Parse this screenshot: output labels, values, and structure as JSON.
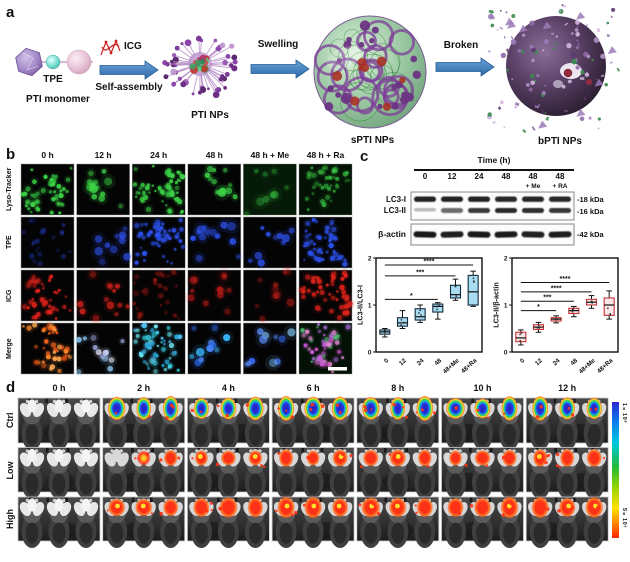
{
  "panel_a": {
    "label": "a",
    "tpe_label": "TPE",
    "monomer_label": "PTI monomer",
    "icg_label": "ICG",
    "self_assembly_label": "Self-assembly",
    "pti_nps_label": "PTI NPs",
    "swelling_label": "Swelling",
    "spti_nps_label": "sPTI NPs",
    "broken_label": "Broken",
    "bpti_nps_label": "bPTI NPs"
  },
  "panel_b": {
    "label": "b",
    "col_headers": [
      "0 h",
      "12 h",
      "24 h",
      "48 h",
      "48 h + Me",
      "48 h + Ra"
    ],
    "row_labels": [
      "Lyso-Tracker",
      "TPE",
      "ICG",
      "Merge"
    ]
  },
  "panel_c": {
    "label": "c",
    "time_header": "Time  (h)",
    "lanes": [
      "0",
      "12",
      "24",
      "48",
      "48",
      "48"
    ],
    "lane_subs": [
      "",
      "",
      "",
      "",
      "+ Me",
      "+ RA"
    ],
    "band_labels_left": [
      "LC3-I",
      "LC3-II",
      "β-actin"
    ],
    "band_labels_right": [
      "-18 kDa",
      "-16 kDa",
      "-42 kDa"
    ]
  },
  "chart_data": [
    {
      "type": "box",
      "ylabel": "LC3-II/LC3-I",
      "ylim": [
        0,
        2
      ],
      "yticks": [
        0,
        1,
        2
      ],
      "categories": [
        "0",
        "12",
        "24",
        "48",
        "48+Me",
        "48+Ra"
      ],
      "boxes": [
        {
          "low": 0.32,
          "q1": 0.38,
          "median": 0.43,
          "q3": 0.47,
          "high": 0.5
        },
        {
          "low": 0.5,
          "q1": 0.55,
          "median": 0.62,
          "q3": 0.73,
          "high": 0.88
        },
        {
          "low": 0.63,
          "q1": 0.68,
          "median": 0.75,
          "q3": 0.92,
          "high": 1.0
        },
        {
          "low": 0.7,
          "q1": 0.85,
          "median": 0.97,
          "q3": 1.02,
          "high": 1.05
        },
        {
          "low": 1.1,
          "q1": 1.15,
          "median": 1.22,
          "q3": 1.42,
          "high": 1.55
        },
        {
          "low": 0.97,
          "q1": 1.0,
          "median": 1.28,
          "q3": 1.63,
          "high": 1.72
        }
      ],
      "significance": [
        {
          "from": 0,
          "to": 3,
          "y": 1.12,
          "label": "*"
        },
        {
          "from": 0,
          "to": 4,
          "y": 1.62,
          "label": "***"
        },
        {
          "from": 0,
          "to": 5,
          "y": 1.85,
          "label": "****"
        }
      ],
      "box_color": "#aadcf2",
      "edge_color": "#122b3e",
      "grid": false,
      "legend": "none"
    },
    {
      "type": "box",
      "ylabel": "LC3-II/β-actin",
      "ylim": [
        0,
        2
      ],
      "yticks": [
        0,
        1,
        2
      ],
      "categories": [
        "0",
        "12",
        "24",
        "48",
        "48+Me",
        "48+Ra"
      ],
      "boxes": [
        {
          "low": 0.15,
          "q1": 0.22,
          "median": 0.3,
          "q3": 0.42,
          "high": 0.47
        },
        {
          "low": 0.42,
          "q1": 0.48,
          "median": 0.53,
          "q3": 0.58,
          "high": 0.63
        },
        {
          "low": 0.62,
          "q1": 0.66,
          "median": 0.7,
          "q3": 0.73,
          "high": 0.77
        },
        {
          "low": 0.75,
          "q1": 0.82,
          "median": 0.88,
          "q3": 0.93,
          "high": 0.97
        },
        {
          "low": 0.93,
          "q1": 1.0,
          "median": 1.06,
          "q3": 1.12,
          "high": 1.2
        },
        {
          "low": 0.7,
          "q1": 0.78,
          "median": 1.0,
          "q3": 1.15,
          "high": 1.3
        }
      ],
      "significance": [
        {
          "from": 0,
          "to": 2,
          "y": 0.88,
          "label": "*"
        },
        {
          "from": 0,
          "to": 3,
          "y": 1.08,
          "label": "***"
        },
        {
          "from": 0,
          "to": 4,
          "y": 1.28,
          "label": "****"
        },
        {
          "from": 0,
          "to": 5,
          "y": 1.48,
          "label": "****"
        }
      ],
      "box_color": "#fbe9e9",
      "edge_color": "#c23232",
      "grid": false,
      "legend": "none"
    }
  ],
  "panel_d": {
    "label": "d",
    "col_headers": [
      "0 h",
      "2 h",
      "4 h",
      "6 h",
      "8 h",
      "10 h",
      "12 h"
    ],
    "row_labels": [
      "Ctrl",
      "Low",
      "High"
    ],
    "colorbar": {
      "top_label": "1×10⁸",
      "bottom_label": "5×10⁶"
    }
  }
}
